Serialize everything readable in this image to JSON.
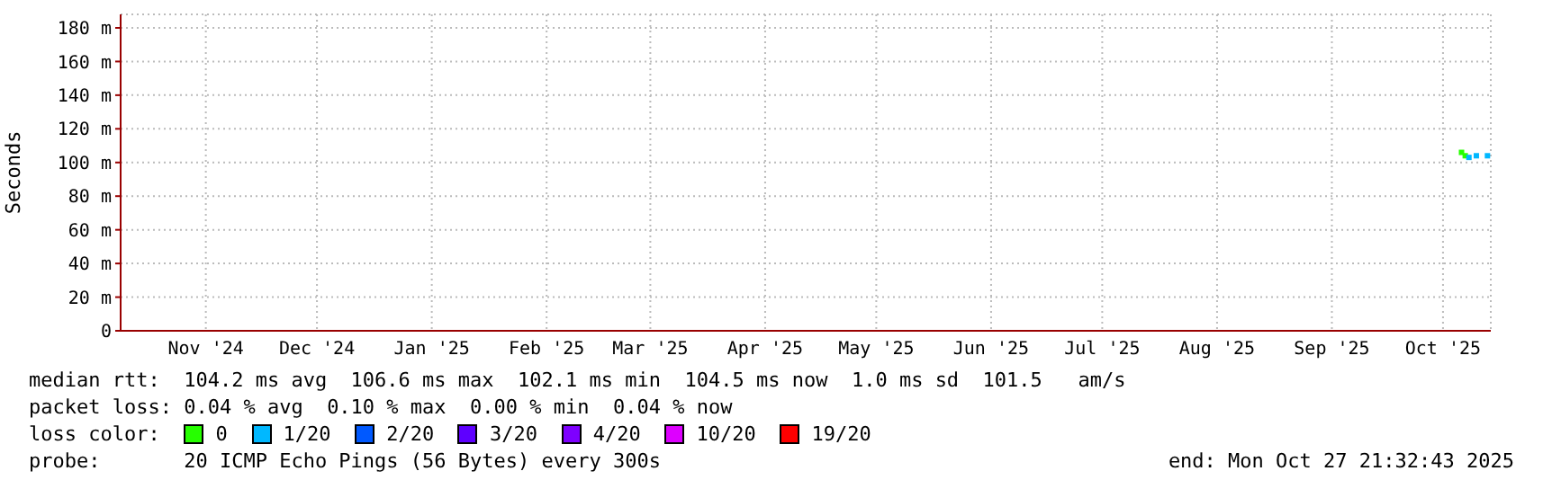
{
  "chart_data": {
    "type": "scatter",
    "ylabel": "Seconds",
    "xlim": [
      "2024-10-23",
      "2025-10-27T21:32"
    ],
    "xticks": [
      {
        "value": "2024-11-15",
        "label": "Nov '24"
      },
      {
        "value": "2024-12-15",
        "label": "Dec '24"
      },
      {
        "value": "2025-01-15",
        "label": "Jan '25"
      },
      {
        "value": "2025-02-15",
        "label": "Feb '25"
      },
      {
        "value": "2025-03-15",
        "label": "Mar '25"
      },
      {
        "value": "2025-04-15",
        "label": "Apr '25"
      },
      {
        "value": "2025-05-15",
        "label": "May '25"
      },
      {
        "value": "2025-06-15",
        "label": "Jun '25"
      },
      {
        "value": "2025-07-15",
        "label": "Jul '25"
      },
      {
        "value": "2025-08-15",
        "label": "Aug '25"
      },
      {
        "value": "2025-09-15",
        "label": "Sep '25"
      },
      {
        "value": "2025-10-15",
        "label": "Oct '25"
      }
    ],
    "ylim": [
      0,
      188
    ],
    "yticks": [
      0,
      {
        "value": 20,
        "label": "20 m"
      },
      {
        "value": 40,
        "label": "40 m"
      },
      {
        "value": 60,
        "label": "60 m"
      },
      {
        "value": 80,
        "label": "80 m"
      },
      {
        "value": 100,
        "label": "100 m"
      },
      {
        "value": 120,
        "label": "120 m"
      },
      {
        "value": 140,
        "label": "140 m"
      },
      {
        "value": 160,
        "label": "160 m"
      },
      {
        "value": 180,
        "label": "180 m"
      }
    ],
    "grid": true,
    "legend": "bottom",
    "legend_title": "loss color:",
    "marker": "square",
    "series": [
      {
        "name": "0",
        "color": "#26ff00",
        "x": [
          "2025-10-20",
          "2025-10-21"
        ],
        "values": [
          106,
          104
        ]
      },
      {
        "name": "1/20",
        "color": "#00b8ff",
        "x": [
          "2025-10-22",
          "2025-10-24",
          "2025-10-27"
        ],
        "values": [
          103,
          104,
          104
        ]
      },
      {
        "name": "2/20",
        "color": "#0059ff"
      },
      {
        "name": "3/20",
        "color": "#5e00ff"
      },
      {
        "name": "4/20",
        "color": "#7e00ff"
      },
      {
        "name": "10/20",
        "color": "#dd00ff"
      },
      {
        "name": "19/20",
        "color": "#ff0000"
      }
    ],
    "annotations": [
      "median rtt:  104.2 ms avg  106.6 ms max  102.1 ms min  104.5 ms now  1.0 ms sd  101.5   am/s",
      "packet loss: 0.04 % avg  0.10 % max  0.00 % min  0.04 % now",
      "probe:       20 ICMP Echo Pings (56 Bytes) every 300s",
      "end: Mon Oct 27 21:32:43 2025"
    ]
  }
}
